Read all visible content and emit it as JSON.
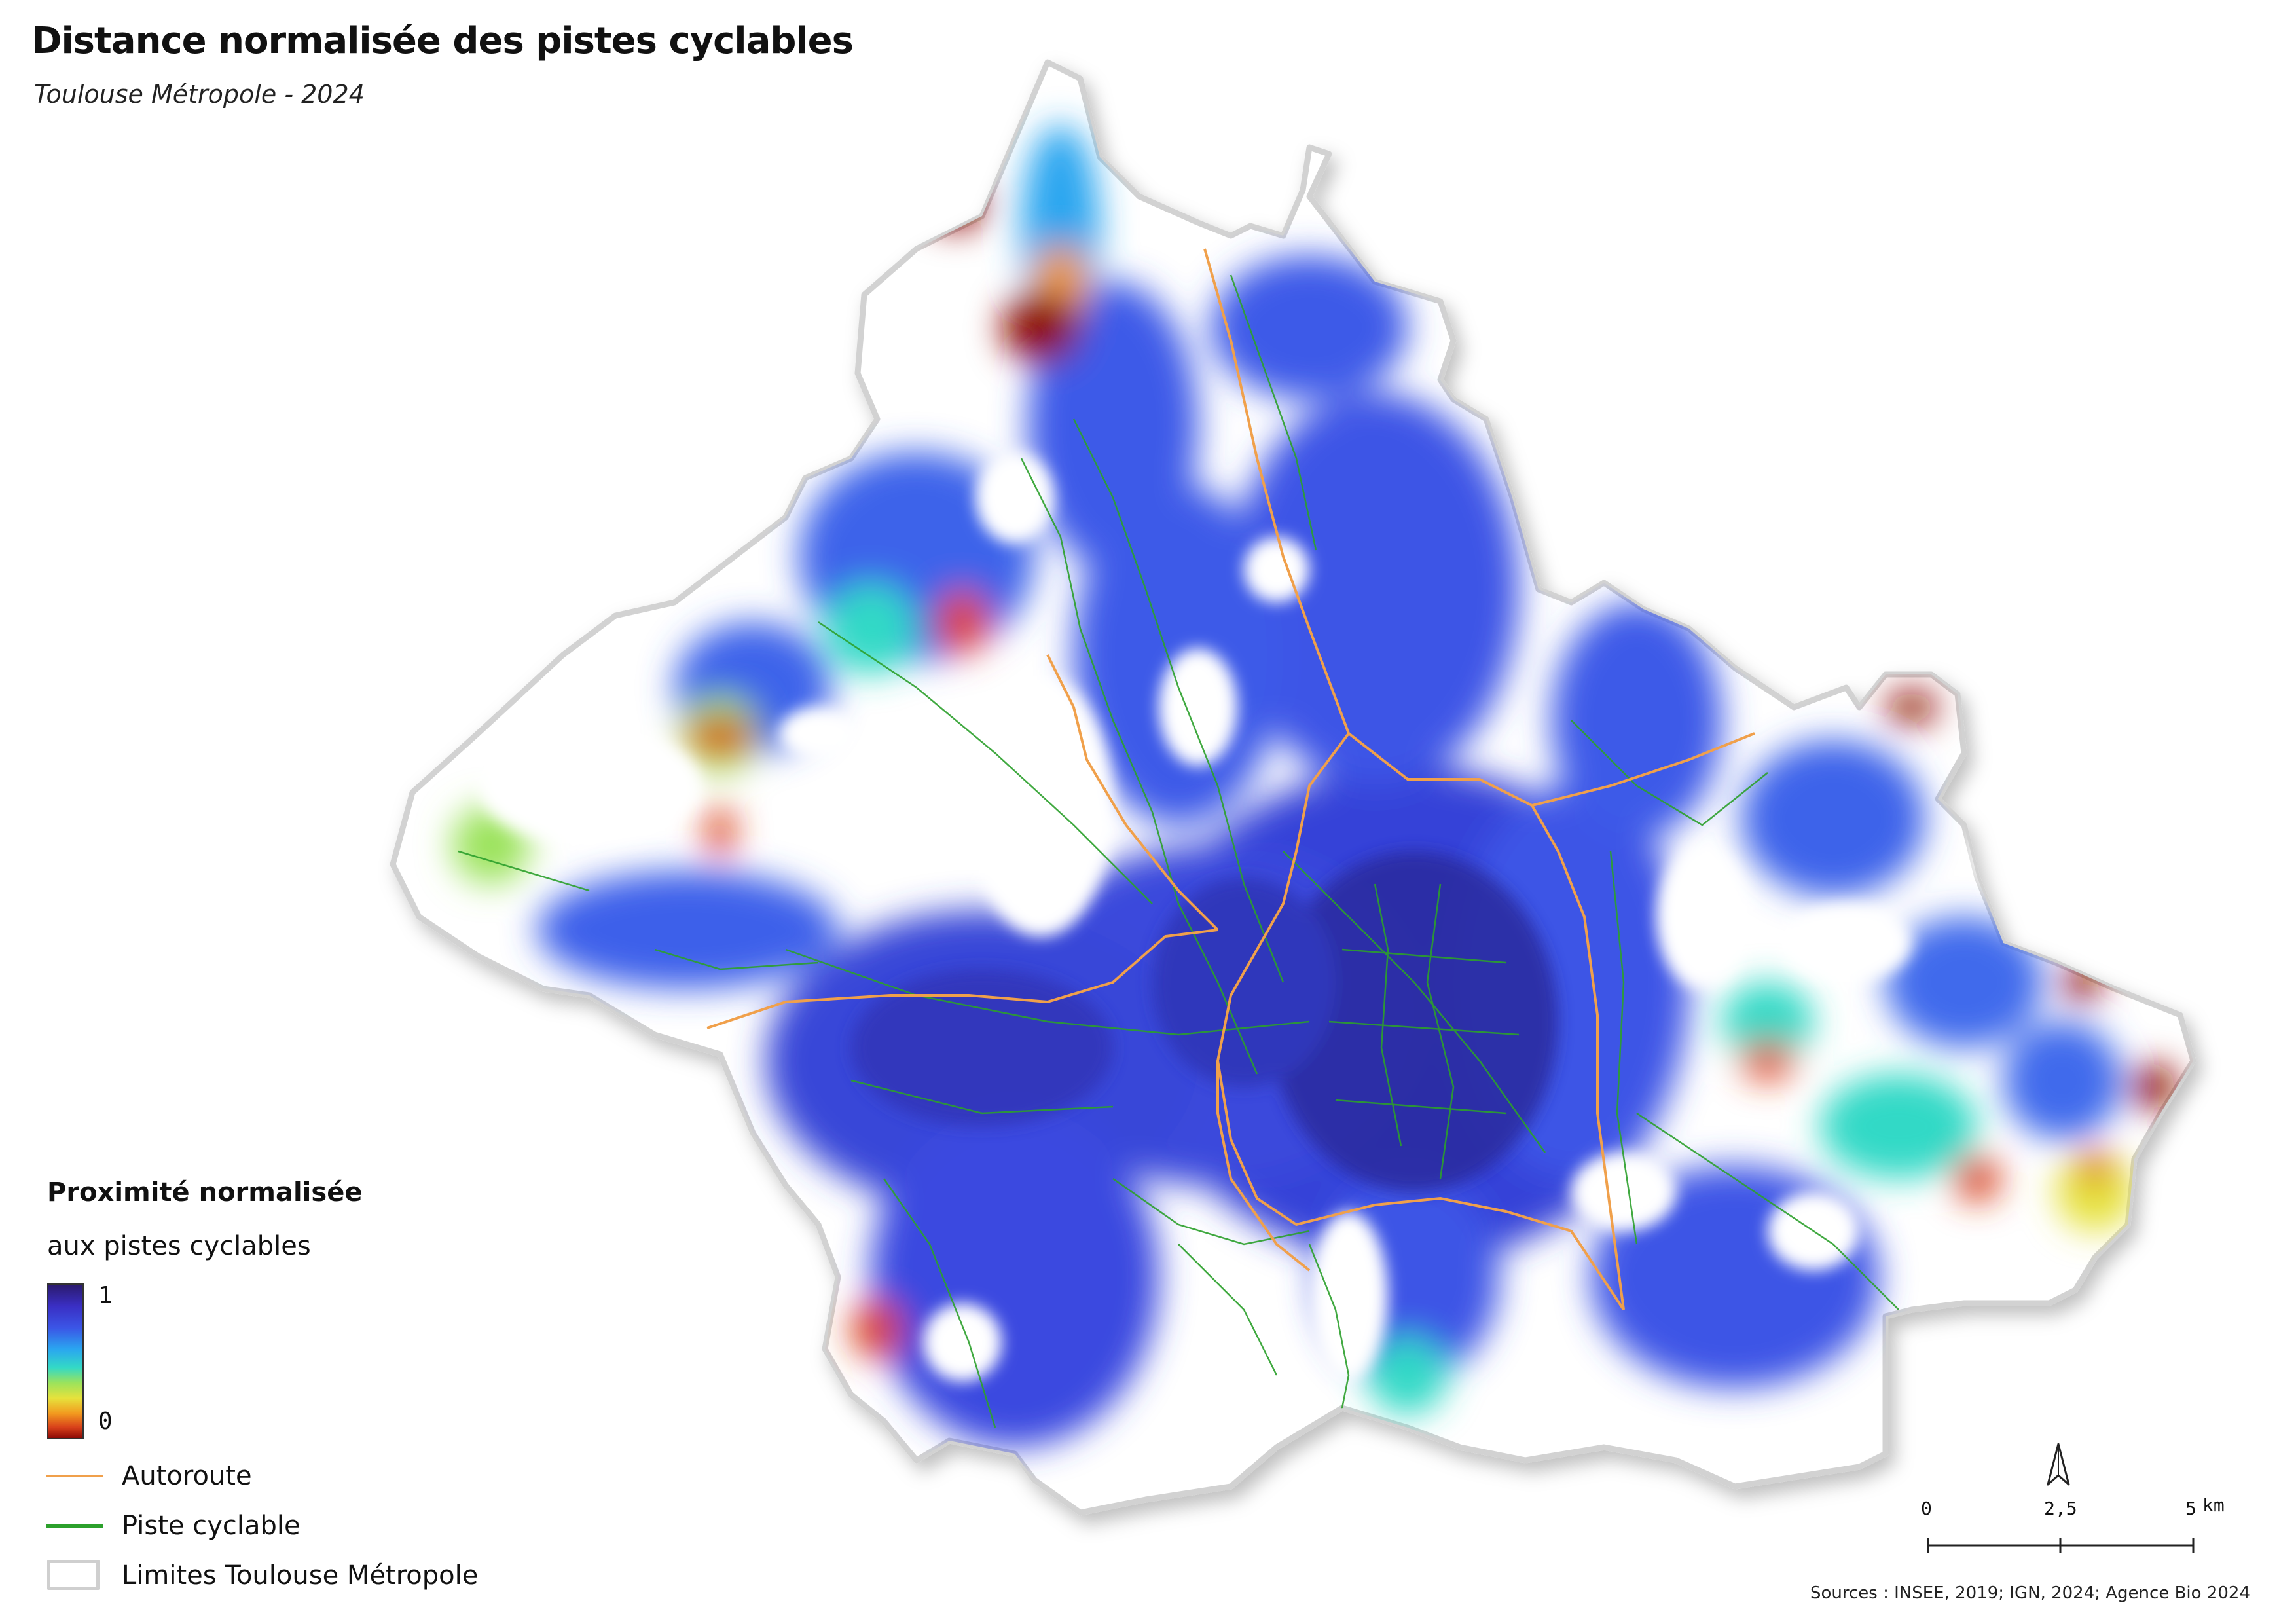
{
  "title": "Distance normalisée des pistes cyclables",
  "subtitle": "Toulouse Métropole - 2024",
  "legend": {
    "title": "Proximité normalisée",
    "subtitle": "aux pistes cyclables",
    "ramp_max": "1",
    "ramp_min": "0",
    "items": [
      {
        "label": "Autoroute",
        "color": "#f0a04b"
      },
      {
        "label": "Piste cyclable",
        "color": "#2ca02c"
      },
      {
        "label": "Limites Toulouse Métropole",
        "color": "#cfcfcf"
      }
    ]
  },
  "scale": {
    "labels": [
      "0",
      "2,5",
      "5"
    ],
    "unit": "km"
  },
  "north_label": "N",
  "sources": "Sources : INSEE, 2019; IGN, 2024; Agence Bio 2024",
  "colors": {
    "high": "#2b1a6e",
    "mid_high": "#3b55e6",
    "mid": "#33d9c6",
    "mid_low": "#e6e23c",
    "low": "#8e0a06",
    "boundary": "#cfcfcf"
  }
}
